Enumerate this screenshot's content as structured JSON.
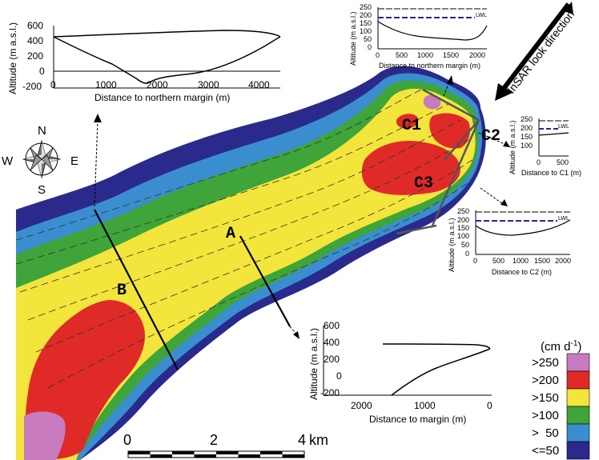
{
  "colors": {
    "c250": "#c87bbf",
    "c200": "#e02a28",
    "c150": "#f3e53b",
    "c100": "#3fa43a",
    "c50": "#3a8ecf",
    "c0": "#2a2a8c",
    "lwl_line": "#1f2a8f"
  },
  "legend": {
    "unit_text": "(cm d",
    "unit_exp": "-1",
    "unit_close": ")",
    "classes": [
      ">250",
      ">200",
      ">150",
      ">100",
      ">  50",
      "<=50"
    ]
  },
  "compass": {
    "n": "N",
    "s": "S",
    "e": "E",
    "w": "W"
  },
  "map_labels": {
    "a": "A",
    "b": "B",
    "c1": "C1",
    "c2": "C2",
    "c3": "C3"
  },
  "insar": {
    "text": "InSAR look direction"
  },
  "scalebar": {
    "t0": "0",
    "t2": "2",
    "t4": "4",
    "unit": "km"
  },
  "profile_b": {
    "ylabel": "Altitude (m a.s.l.)",
    "xlabel": "Distance to northern margin (m)",
    "yticks": [
      "600",
      "400",
      "200",
      "0",
      "-200"
    ],
    "xticks": [
      "0",
      "1000",
      "2000",
      "3000",
      "4000"
    ]
  },
  "profile_c1": {
    "ylabel": "Altitude (m a.s.l.)",
    "xlabel": "Distance to northern margin (m)",
    "yticks": [
      "250",
      "200",
      "150",
      "100",
      "50",
      "0"
    ],
    "xticks": [
      "0",
      "500",
      "1000",
      "1500",
      "2000"
    ],
    "lwl": "LWL"
  },
  "profile_c2": {
    "ylabel": "Altitude (m a.s.l.)",
    "xlabel": "Distance to C1 (m)",
    "yticks": [
      "250",
      "200",
      "150",
      "100"
    ],
    "xticks": [
      "0",
      "500"
    ],
    "lwl": "LWL"
  },
  "profile_c3": {
    "ylabel": "Altitude (m a.s.l.)",
    "xlabel": "Distance to C2 (m)",
    "yticks": [
      "250",
      "200",
      "150",
      "100",
      "50",
      "0"
    ],
    "xticks": [
      "0",
      "500",
      "1000",
      "1500",
      "2000"
    ],
    "lwl": "LWL"
  },
  "profile_a": {
    "ylabel": "Altitude (m a.s.l.)",
    "xlabel": "Distance to margin (m)",
    "yticks": [
      "600",
      "400",
      "200",
      "0",
      "-200"
    ],
    "xticks": [
      "2000",
      "1000",
      "0"
    ]
  }
}
